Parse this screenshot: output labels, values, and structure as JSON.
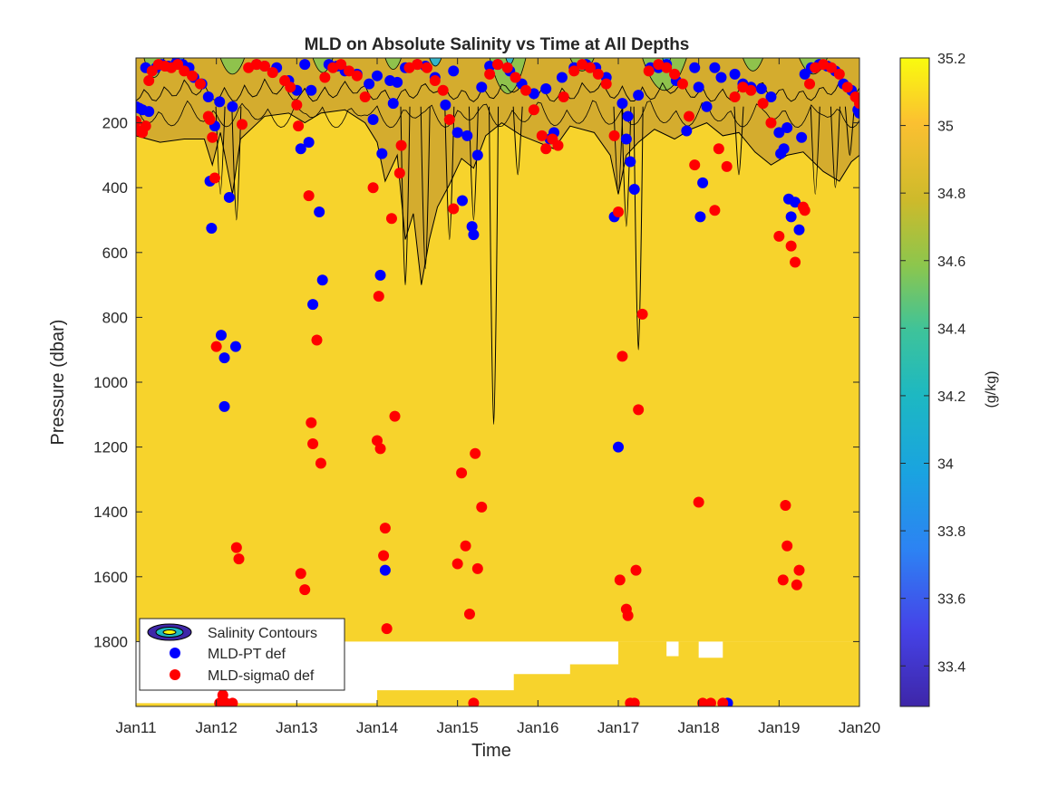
{
  "chart_data": {
    "type": "scatter",
    "title": "MLD on Absolute Salinity vs Time at All Depths",
    "xlabel": "Time",
    "ylabel": "Pressure (dbar)",
    "x_ticks": [
      "Jan11",
      "Jan12",
      "Jan13",
      "Jan14",
      "Jan15",
      "Jan16",
      "Jan17",
      "Jan18",
      "Jan19",
      "Jan20"
    ],
    "xlim": [
      "2011-01-01",
      "2020-01-01"
    ],
    "y_ticks": [
      200,
      400,
      600,
      800,
      1000,
      1200,
      1400,
      1600,
      1800
    ],
    "ylim": [
      0,
      2000
    ],
    "y_reversed": true,
    "colorbar": {
      "label": "(g/kg)",
      "ticks": [
        33.4,
        33.6,
        33.8,
        34,
        34.2,
        34.4,
        34.6,
        34.8,
        35,
        35.2
      ],
      "tick_labels": [
        "33.4",
        "33.6",
        "33.8",
        "34",
        "34.2",
        "34.4",
        "34.6",
        "34.8",
        "35",
        "35.2"
      ],
      "range": [
        33.28,
        35.2
      ],
      "colormap": "parula"
    },
    "legend": {
      "location": "bottom-left",
      "entries": [
        "Salinity Contours",
        "MLD-PT def",
        "MLD-sigma0 def"
      ]
    },
    "colors": {
      "field_deep": "#f7d32c",
      "field_fresh": "#d4ac2e",
      "field_green": "#8fc24c",
      "field_cyan": "#35b5c7",
      "mld_pt": "#0000ff",
      "mld_sigma0": "#ff0000",
      "contour_line": "#000000"
    },
    "series": [
      {
        "name": "MLD-PT def",
        "marker": "circle",
        "color": "#0000ff",
        "points": [
          [
            2011.0,
            150
          ],
          [
            2011.04,
            155
          ],
          [
            2011.08,
            160
          ],
          [
            2011.12,
            30
          ],
          [
            2011.16,
            165
          ],
          [
            2011.25,
            30
          ],
          [
            2011.32,
            20
          ],
          [
            2011.4,
            25
          ],
          [
            2011.5,
            15
          ],
          [
            2011.58,
            20
          ],
          [
            2011.66,
            30
          ],
          [
            2011.72,
            60
          ],
          [
            2011.82,
            80
          ],
          [
            2011.9,
            120
          ],
          [
            2011.92,
            380
          ],
          [
            2011.94,
            525
          ],
          [
            2011.98,
            210
          ],
          [
            2012.04,
            135
          ],
          [
            2012.06,
            855
          ],
          [
            2012.1,
            925
          ],
          [
            2012.1,
            1075
          ],
          [
            2012.16,
            430
          ],
          [
            2012.2,
            150
          ],
          [
            2012.24,
            890
          ],
          [
            2012.5,
            20
          ],
          [
            2012.6,
            25
          ],
          [
            2012.75,
            30
          ],
          [
            2012.9,
            70
          ],
          [
            2013.0,
            100
          ],
          [
            2013.05,
            280
          ],
          [
            2013.1,
            20
          ],
          [
            2013.15,
            260
          ],
          [
            2013.18,
            100
          ],
          [
            2013.2,
            760
          ],
          [
            2013.28,
            475
          ],
          [
            2013.32,
            685
          ],
          [
            2013.4,
            20
          ],
          [
            2013.5,
            25
          ],
          [
            2013.6,
            40
          ],
          [
            2013.75,
            50
          ],
          [
            2013.9,
            80
          ],
          [
            2013.95,
            190
          ],
          [
            2014.0,
            55
          ],
          [
            2014.04,
            670
          ],
          [
            2014.06,
            295
          ],
          [
            2014.1,
            1580
          ],
          [
            2014.16,
            70
          ],
          [
            2014.2,
            140
          ],
          [
            2014.25,
            75
          ],
          [
            2014.35,
            30
          ],
          [
            2014.5,
            20
          ],
          [
            2014.6,
            25
          ],
          [
            2014.72,
            60
          ],
          [
            2014.85,
            145
          ],
          [
            2014.95,
            40
          ],
          [
            2015.0,
            230
          ],
          [
            2015.06,
            440
          ],
          [
            2015.12,
            240
          ],
          [
            2015.18,
            520
          ],
          [
            2015.2,
            545
          ],
          [
            2015.25,
            300
          ],
          [
            2015.3,
            90
          ],
          [
            2015.4,
            25
          ],
          [
            2015.5,
            20
          ],
          [
            2015.65,
            40
          ],
          [
            2015.8,
            80
          ],
          [
            2015.95,
            110
          ],
          [
            2016.1,
            95
          ],
          [
            2016.15,
            250
          ],
          [
            2016.2,
            230
          ],
          [
            2016.3,
            60
          ],
          [
            2016.45,
            30
          ],
          [
            2016.6,
            20
          ],
          [
            2016.72,
            30
          ],
          [
            2016.85,
            60
          ],
          [
            2016.95,
            490
          ],
          [
            2017.0,
            1200
          ],
          [
            2017.05,
            140
          ],
          [
            2017.1,
            250
          ],
          [
            2017.12,
            180
          ],
          [
            2017.15,
            320
          ],
          [
            2017.2,
            405
          ],
          [
            2017.25,
            115
          ],
          [
            2017.4,
            30
          ],
          [
            2017.5,
            30
          ],
          [
            2017.6,
            20
          ],
          [
            2017.72,
            70
          ],
          [
            2017.85,
            225
          ],
          [
            2017.95,
            30
          ],
          [
            2018.0,
            90
          ],
          [
            2018.02,
            490
          ],
          [
            2018.05,
            385
          ],
          [
            2018.1,
            150
          ],
          [
            2018.2,
            30
          ],
          [
            2018.28,
            60
          ],
          [
            2018.36,
            1990
          ],
          [
            2018.45,
            50
          ],
          [
            2018.55,
            80
          ],
          [
            2018.65,
            90
          ],
          [
            2018.78,
            95
          ],
          [
            2018.9,
            120
          ],
          [
            2019.0,
            230
          ],
          [
            2019.02,
            295
          ],
          [
            2019.06,
            280
          ],
          [
            2019.1,
            215
          ],
          [
            2019.12,
            435
          ],
          [
            2019.15,
            490
          ],
          [
            2019.2,
            445
          ],
          [
            2019.25,
            530
          ],
          [
            2019.28,
            245
          ],
          [
            2019.32,
            50
          ],
          [
            2019.4,
            30
          ],
          [
            2019.5,
            20
          ],
          [
            2019.6,
            25
          ],
          [
            2019.7,
            40
          ],
          [
            2019.8,
            80
          ],
          [
            2019.9,
            100
          ],
          [
            2019.98,
            160
          ],
          [
            2020.0,
            170
          ]
        ]
      },
      {
        "name": "MLD-sigma0 def",
        "marker": "circle",
        "color": "#ff0000",
        "points": [
          [
            2011.0,
            195
          ],
          [
            2011.04,
            225
          ],
          [
            2011.08,
            230
          ],
          [
            2011.12,
            210
          ],
          [
            2011.16,
            70
          ],
          [
            2011.2,
            40
          ],
          [
            2011.28,
            20
          ],
          [
            2011.36,
            25
          ],
          [
            2011.44,
            30
          ],
          [
            2011.52,
            20
          ],
          [
            2011.6,
            40
          ],
          [
            2011.7,
            55
          ],
          [
            2011.8,
            80
          ],
          [
            2011.9,
            180
          ],
          [
            2011.92,
            190
          ],
          [
            2011.95,
            245
          ],
          [
            2011.98,
            370
          ],
          [
            2012.0,
            890
          ],
          [
            2012.04,
            1990
          ],
          [
            2012.08,
            1965
          ],
          [
            2012.12,
            1990
          ],
          [
            2012.2,
            1990
          ],
          [
            2012.25,
            1510
          ],
          [
            2012.28,
            1545
          ],
          [
            2012.32,
            205
          ],
          [
            2012.4,
            30
          ],
          [
            2012.5,
            20
          ],
          [
            2012.6,
            25
          ],
          [
            2012.7,
            45
          ],
          [
            2012.85,
            70
          ],
          [
            2012.92,
            90
          ],
          [
            2013.0,
            145
          ],
          [
            2013.02,
            210
          ],
          [
            2013.05,
            1590
          ],
          [
            2013.1,
            1640
          ],
          [
            2013.15,
            425
          ],
          [
            2013.18,
            1125
          ],
          [
            2013.2,
            1190
          ],
          [
            2013.25,
            870
          ],
          [
            2013.3,
            1250
          ],
          [
            2013.35,
            60
          ],
          [
            2013.45,
            30
          ],
          [
            2013.55,
            20
          ],
          [
            2013.65,
            40
          ],
          [
            2013.75,
            55
          ],
          [
            2013.85,
            120
          ],
          [
            2013.95,
            400
          ],
          [
            2014.0,
            1180
          ],
          [
            2014.02,
            735
          ],
          [
            2014.04,
            1205
          ],
          [
            2014.08,
            1535
          ],
          [
            2014.1,
            1450
          ],
          [
            2014.12,
            1760
          ],
          [
            2014.18,
            495
          ],
          [
            2014.22,
            1105
          ],
          [
            2014.28,
            355
          ],
          [
            2014.3,
            270
          ],
          [
            2014.4,
            30
          ],
          [
            2014.5,
            20
          ],
          [
            2014.62,
            30
          ],
          [
            2014.72,
            70
          ],
          [
            2014.82,
            100
          ],
          [
            2014.9,
            190
          ],
          [
            2014.95,
            465
          ],
          [
            2015.0,
            1560
          ],
          [
            2015.05,
            1280
          ],
          [
            2015.1,
            1505
          ],
          [
            2015.15,
            1715
          ],
          [
            2015.2,
            1990
          ],
          [
            2015.22,
            1220
          ],
          [
            2015.25,
            1575
          ],
          [
            2015.3,
            1385
          ],
          [
            2015.4,
            50
          ],
          [
            2015.5,
            20
          ],
          [
            2015.62,
            30
          ],
          [
            2015.72,
            60
          ],
          [
            2015.85,
            100
          ],
          [
            2015.95,
            160
          ],
          [
            2016.05,
            240
          ],
          [
            2016.1,
            280
          ],
          [
            2016.18,
            250
          ],
          [
            2016.25,
            270
          ],
          [
            2016.32,
            120
          ],
          [
            2016.45,
            40
          ],
          [
            2016.55,
            20
          ],
          [
            2016.65,
            30
          ],
          [
            2016.75,
            50
          ],
          [
            2016.85,
            80
          ],
          [
            2016.95,
            240
          ],
          [
            2017.0,
            475
          ],
          [
            2017.02,
            1610
          ],
          [
            2017.05,
            920
          ],
          [
            2017.1,
            1700
          ],
          [
            2017.12,
            1720
          ],
          [
            2017.15,
            1990
          ],
          [
            2017.2,
            1990
          ],
          [
            2017.22,
            1580
          ],
          [
            2017.25,
            1085
          ],
          [
            2017.3,
            790
          ],
          [
            2017.38,
            40
          ],
          [
            2017.5,
            20
          ],
          [
            2017.6,
            30
          ],
          [
            2017.7,
            50
          ],
          [
            2017.8,
            80
          ],
          [
            2017.88,
            180
          ],
          [
            2017.95,
            330
          ],
          [
            2018.0,
            1370
          ],
          [
            2018.05,
            1990
          ],
          [
            2018.15,
            1990
          ],
          [
            2018.2,
            470
          ],
          [
            2018.25,
            280
          ],
          [
            2018.3,
            1990
          ],
          [
            2018.35,
            335
          ],
          [
            2018.45,
            120
          ],
          [
            2018.55,
            90
          ],
          [
            2018.65,
            100
          ],
          [
            2018.8,
            140
          ],
          [
            2018.9,
            200
          ],
          [
            2019.0,
            550
          ],
          [
            2019.05,
            1610
          ],
          [
            2019.08,
            1380
          ],
          [
            2019.1,
            1505
          ],
          [
            2019.15,
            580
          ],
          [
            2019.2,
            630
          ],
          [
            2019.25,
            1580
          ],
          [
            2019.22,
            1625
          ],
          [
            2019.3,
            460
          ],
          [
            2019.32,
            470
          ],
          [
            2019.38,
            80
          ],
          [
            2019.45,
            30
          ],
          [
            2019.55,
            20
          ],
          [
            2019.65,
            30
          ],
          [
            2019.75,
            50
          ],
          [
            2019.85,
            90
          ],
          [
            2019.95,
            120
          ],
          [
            2020.0,
            140
          ]
        ]
      }
    ]
  }
}
